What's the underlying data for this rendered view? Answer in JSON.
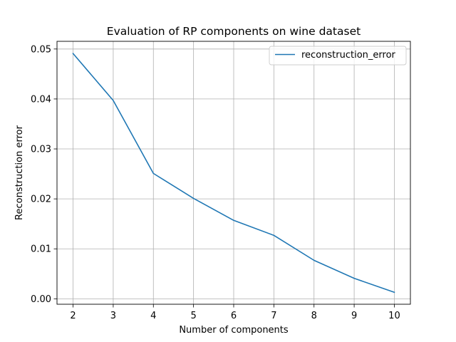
{
  "chart_data": {
    "type": "line",
    "title": "Evaluation of RP components on wine dataset",
    "xlabel": "Number of components",
    "ylabel": "Reconstruction error",
    "x": [
      2,
      3,
      4,
      5,
      6,
      7,
      8,
      9,
      10
    ],
    "series": [
      {
        "name": "reconstruction_error",
        "values": [
          0.0491,
          0.0397,
          0.0251,
          0.0201,
          0.0157,
          0.0127,
          0.0077,
          0.0041,
          0.0013
        ],
        "color": "#1f77b4"
      }
    ],
    "xticks": [
      "2",
      "3",
      "4",
      "5",
      "6",
      "7",
      "8",
      "9",
      "10"
    ],
    "yticks": [
      "0.00",
      "0.01",
      "0.02",
      "0.03",
      "0.04",
      "0.05"
    ],
    "xlim": [
      1.6,
      10.4
    ],
    "ylim": [
      -0.00109,
      0.05154
    ],
    "grid": true,
    "legend_position": "top-right"
  }
}
